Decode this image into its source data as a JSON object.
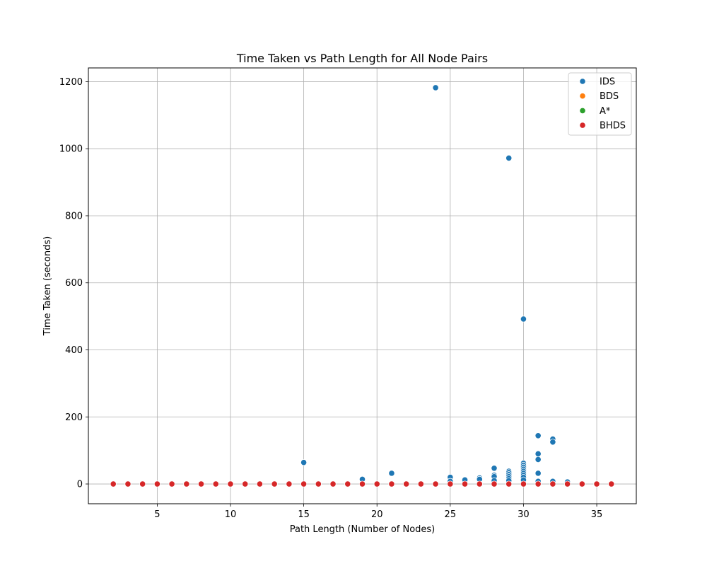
{
  "chart_data": {
    "type": "scatter",
    "title": "Time Taken vs Path Length for All Node Pairs",
    "xlabel": "Path Length (Number of Nodes)",
    "ylabel": "Time Taken (seconds)",
    "xlim": [
      0.3,
      37.7
    ],
    "ylim": [
      -59,
      1241
    ],
    "xticks": [
      5,
      10,
      15,
      20,
      25,
      30,
      35
    ],
    "yticks": [
      0,
      200,
      400,
      600,
      800,
      1000,
      1200
    ],
    "grid": true,
    "legend_position": "top-right",
    "series": [
      {
        "name": "IDS",
        "color": "#1f77b4",
        "points": [
          [
            24,
            1182
          ],
          [
            29,
            972
          ],
          [
            30,
            492
          ],
          [
            15,
            64
          ],
          [
            21,
            32
          ],
          [
            19,
            14
          ],
          [
            25,
            20
          ],
          [
            25,
            8
          ],
          [
            26,
            12
          ],
          [
            27,
            18
          ],
          [
            27,
            14
          ],
          [
            28,
            47
          ],
          [
            28,
            26
          ],
          [
            28,
            22
          ],
          [
            28,
            10
          ],
          [
            29,
            38
          ],
          [
            29,
            34
          ],
          [
            29,
            28
          ],
          [
            29,
            22
          ],
          [
            29,
            16
          ],
          [
            29,
            10
          ],
          [
            30,
            62
          ],
          [
            30,
            56
          ],
          [
            30,
            50
          ],
          [
            30,
            44
          ],
          [
            30,
            38
          ],
          [
            30,
            32
          ],
          [
            30,
            26
          ],
          [
            30,
            20
          ],
          [
            30,
            12
          ],
          [
            31,
            144
          ],
          [
            31,
            90
          ],
          [
            31,
            73
          ],
          [
            31,
            32
          ],
          [
            31,
            8
          ],
          [
            32,
            134
          ],
          [
            32,
            125
          ],
          [
            32,
            8
          ],
          [
            33,
            6
          ]
        ]
      },
      {
        "name": "BDS",
        "color": "#ff7f0e",
        "points": []
      },
      {
        "name": "A*",
        "color": "#2ca02c",
        "points": []
      },
      {
        "name": "BHDS",
        "color": "#d62728",
        "points": [
          [
            2,
            0
          ],
          [
            3,
            0
          ],
          [
            4,
            0
          ],
          [
            5,
            0
          ],
          [
            6,
            0
          ],
          [
            7,
            0
          ],
          [
            8,
            0
          ],
          [
            9,
            0
          ],
          [
            10,
            0
          ],
          [
            11,
            0
          ],
          [
            12,
            0
          ],
          [
            13,
            0
          ],
          [
            14,
            0
          ],
          [
            15,
            0
          ],
          [
            16,
            0
          ],
          [
            17,
            0
          ],
          [
            18,
            0
          ],
          [
            19,
            0
          ],
          [
            20,
            0
          ],
          [
            21,
            0
          ],
          [
            22,
            0
          ],
          [
            23,
            0
          ],
          [
            24,
            0
          ],
          [
            25,
            0
          ],
          [
            26,
            0
          ],
          [
            27,
            0
          ],
          [
            28,
            0
          ],
          [
            29,
            0
          ],
          [
            30,
            0
          ],
          [
            31,
            0
          ],
          [
            32,
            0
          ],
          [
            33,
            0
          ],
          [
            34,
            0
          ],
          [
            35,
            0
          ],
          [
            36,
            0
          ]
        ]
      }
    ]
  }
}
